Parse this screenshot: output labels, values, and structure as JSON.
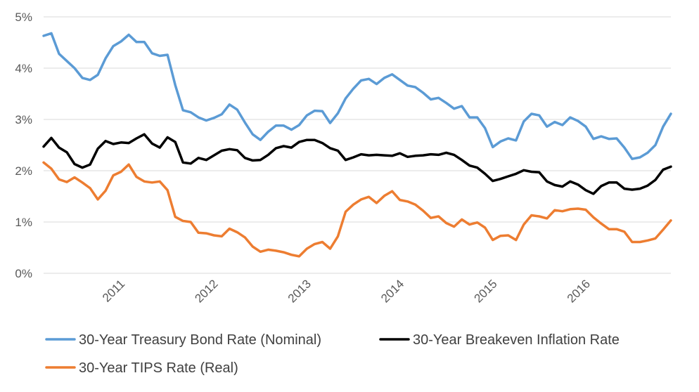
{
  "chart_data": {
    "type": "line",
    "x_ticks": [
      "2011",
      "2012",
      "2013",
      "2014",
      "2015",
      "2016"
    ],
    "y_ticks": [
      "0%",
      "1%",
      "2%",
      "3%",
      "4%",
      "5%"
    ],
    "ylim": [
      0,
      5
    ],
    "x_start": 2010.17,
    "x_end": 2016.91,
    "grid": "horizontal",
    "legend_position": "bottom",
    "series": [
      {
        "name": "30-Year Treasury Bond Rate (Nominal)",
        "color": "#5B9BD5",
        "values": [
          4.63,
          4.68,
          4.28,
          4.14,
          4.0,
          3.81,
          3.77,
          3.87,
          4.19,
          4.43,
          4.52,
          4.65,
          4.51,
          4.51,
          4.29,
          4.24,
          4.26,
          3.67,
          3.18,
          3.14,
          3.04,
          2.98,
          3.03,
          3.1,
          3.29,
          3.19,
          2.94,
          2.71,
          2.6,
          2.76,
          2.88,
          2.88,
          2.8,
          2.89,
          3.08,
          3.17,
          3.16,
          2.93,
          3.12,
          3.41,
          3.6,
          3.76,
          3.79,
          3.69,
          3.81,
          3.88,
          3.77,
          3.66,
          3.63,
          3.52,
          3.39,
          3.42,
          3.32,
          3.21,
          3.26,
          3.04,
          3.04,
          2.83,
          2.46,
          2.57,
          2.63,
          2.59,
          2.96,
          3.11,
          3.08,
          2.86,
          2.95,
          2.89,
          3.04,
          2.97,
          2.86,
          2.62,
          2.67,
          2.62,
          2.63,
          2.45,
          2.23,
          2.26,
          2.35,
          2.5,
          2.86,
          3.11
        ]
      },
      {
        "name": "30-Year Breakeven Inflation Rate",
        "color": "#000000",
        "values": [
          2.47,
          2.64,
          2.45,
          2.36,
          2.13,
          2.06,
          2.12,
          2.43,
          2.58,
          2.52,
          2.55,
          2.54,
          2.63,
          2.71,
          2.53,
          2.45,
          2.65,
          2.56,
          2.16,
          2.14,
          2.25,
          2.21,
          2.3,
          2.39,
          2.42,
          2.4,
          2.25,
          2.2,
          2.21,
          2.31,
          2.44,
          2.48,
          2.45,
          2.56,
          2.6,
          2.6,
          2.54,
          2.44,
          2.39,
          2.21,
          2.26,
          2.32,
          2.3,
          2.31,
          2.3,
          2.29,
          2.34,
          2.27,
          2.29,
          2.3,
          2.32,
          2.31,
          2.35,
          2.31,
          2.21,
          2.1,
          2.06,
          1.94,
          1.8,
          1.84,
          1.89,
          1.94,
          2.01,
          1.98,
          1.97,
          1.79,
          1.72,
          1.69,
          1.79,
          1.73,
          1.62,
          1.55,
          1.7,
          1.77,
          1.77,
          1.65,
          1.63,
          1.65,
          1.71,
          1.82,
          2.02,
          2.08
        ]
      },
      {
        "name": "30-Year TIPS Rate (Real)",
        "color": "#ED7D31",
        "values": [
          2.16,
          2.04,
          1.83,
          1.78,
          1.87,
          1.77,
          1.66,
          1.44,
          1.61,
          1.91,
          1.98,
          2.12,
          1.88,
          1.79,
          1.77,
          1.79,
          1.62,
          1.1,
          1.02,
          1.0,
          0.79,
          0.78,
          0.74,
          0.72,
          0.87,
          0.8,
          0.7,
          0.52,
          0.42,
          0.46,
          0.44,
          0.41,
          0.36,
          0.33,
          0.48,
          0.57,
          0.61,
          0.48,
          0.72,
          1.2,
          1.34,
          1.44,
          1.49,
          1.37,
          1.51,
          1.6,
          1.43,
          1.4,
          1.34,
          1.22,
          1.08,
          1.11,
          0.98,
          0.91,
          1.05,
          0.95,
          0.99,
          0.89,
          0.65,
          0.73,
          0.74,
          0.65,
          0.95,
          1.13,
          1.11,
          1.07,
          1.23,
          1.21,
          1.25,
          1.26,
          1.24,
          1.09,
          0.97,
          0.86,
          0.86,
          0.81,
          0.61,
          0.61,
          0.64,
          0.68,
          0.85,
          1.03
        ]
      }
    ]
  }
}
